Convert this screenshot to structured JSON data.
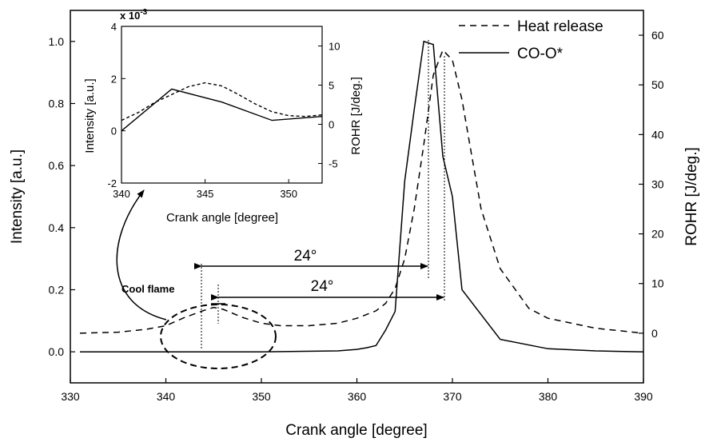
{
  "chart_data": [
    {
      "type": "line",
      "xlabel": "Crank angle [degree]",
      "ylabel": "Intensity [a.u.]",
      "y2label": "ROHR [J/deg.]",
      "xlim": [
        330,
        390
      ],
      "ylim": [
        -0.1,
        1.1
      ],
      "y2lim": [
        -10,
        65
      ],
      "xticks": [
        "330",
        "340",
        "350",
        "360",
        "370",
        "380",
        "390"
      ],
      "yticks": [
        "0.0",
        "0.2",
        "0.4",
        "0.6",
        "0.8",
        "1.0"
      ],
      "y2ticks": [
        "0",
        "10",
        "20",
        "30",
        "40",
        "50",
        "60"
      ],
      "legend_position": "top-right",
      "series": [
        {
          "name": "Heat release",
          "axis": "right",
          "style": "dashed",
          "x": [
            331,
            335,
            338,
            340,
            342,
            344,
            345,
            346,
            348,
            350,
            352,
            355,
            358,
            360,
            362,
            363,
            364,
            365,
            366,
            367,
            368,
            369,
            370,
            371,
            372,
            373,
            375,
            378,
            380,
            385,
            390
          ],
          "y": [
            0,
            0.2,
            0.8,
            1.5,
            3.2,
            4.6,
            5.2,
            4.8,
            3.2,
            2,
            1.5,
            1.5,
            2,
            3,
            4.5,
            6,
            9,
            15,
            25,
            38,
            52,
            57,
            55,
            47,
            36,
            25,
            13,
            5,
            3,
            1,
            0
          ]
        },
        {
          "name": "CO-O*",
          "axis": "left",
          "style": "solid",
          "x": [
            331,
            340,
            350,
            358,
            360,
            361,
            362,
            363,
            364,
            365,
            366,
            367,
            368,
            369,
            370,
            371,
            375,
            380,
            385,
            390
          ],
          "y": [
            0,
            0,
            0,
            0.003,
            0.008,
            0.013,
            0.02,
            0.07,
            0.13,
            0.55,
            0.78,
            1.0,
            0.99,
            0.63,
            0.5,
            0.2,
            0.04,
            0.01,
            0.003,
            0
          ]
        }
      ],
      "annotations": [
        "24°",
        "24°",
        "Cool flame"
      ]
    },
    {
      "type": "line",
      "inset": true,
      "xlabel": "Crank angle [degree]",
      "ylabel": "Intensity [a.u.]",
      "y2label": "ROHR [J/deg.]",
      "y_exponent": "x 10",
      "y_exponent_power": "-3",
      "xlim": [
        340,
        352
      ],
      "ylim": [
        -2,
        4
      ],
      "y2lim": [
        -7.5,
        12.5
      ],
      "xticks": [
        "340",
        "345",
        "350"
      ],
      "yticks": [
        "-2",
        "0",
        "2",
        "4"
      ],
      "y2ticks": [
        "-5",
        "0",
        "5",
        "10"
      ],
      "series": [
        {
          "name": "Heat release",
          "axis": "right",
          "style": "dashed",
          "x": [
            340,
            341,
            342,
            343,
            344,
            345,
            346,
            347,
            348,
            349,
            350,
            351,
            352
          ],
          "y": [
            0.5,
            1.5,
            2.8,
            3.8,
            4.8,
            5.3,
            4.9,
            3.8,
            2.6,
            1.6,
            1.1,
            1.0,
            1.2
          ]
        },
        {
          "name": "CO-O*",
          "axis": "left",
          "style": "solid",
          "x": [
            340,
            343,
            346,
            349,
            352
          ],
          "y": [
            0.0,
            1.6,
            1.1,
            0.4,
            0.55
          ]
        }
      ]
    }
  ]
}
